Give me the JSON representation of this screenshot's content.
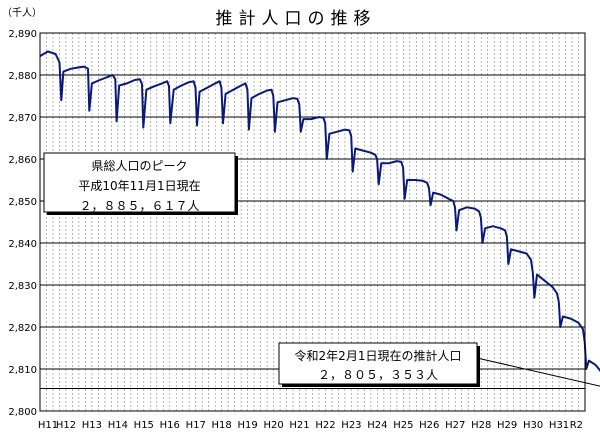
{
  "chart_data": {
    "type": "line",
    "title": "推計人口の推移",
    "unit_label": "（千人）",
    "ylim": [
      2800,
      2890
    ],
    "yticks": [
      "2,890",
      "2,880",
      "2,870",
      "2,860",
      "2,850",
      "2,840",
      "2,830",
      "2,820",
      "2,810",
      "2,800"
    ],
    "xlabels": [
      "H11",
      "H12",
      "H13",
      "H14",
      "H15",
      "H16",
      "H17",
      "H18",
      "H19",
      "H20",
      "H21",
      "H22",
      "H23",
      "H24",
      "H25",
      "H26",
      "H27",
      "H28",
      "H29",
      "H30",
      "H31",
      "R2"
    ],
    "grid": true,
    "line_color": "#0a1a7a",
    "reference_line_value": 2805.353,
    "annotations": [
      {
        "name": "peak",
        "lines": [
          "県総人口のピーク",
          "平成10年11月1日現在",
          "２，８８５，６１７人"
        ]
      },
      {
        "name": "current",
        "lines": [
          "令和2年2月1日現在の推計人口",
          "２，８０５，３５３人"
        ]
      }
    ],
    "series": [
      {
        "points": [
          [
            0.0,
            2884.5
          ],
          [
            0.3,
            2885.6
          ],
          [
            0.6,
            2885.0
          ],
          [
            0.75,
            2883.0
          ],
          [
            0.82,
            2874.0
          ],
          [
            0.9,
            2880.8
          ],
          [
            1.2,
            2881.5
          ],
          [
            1.5,
            2881.8
          ],
          [
            1.7,
            2882.0
          ],
          [
            1.85,
            2881.5
          ],
          [
            1.9,
            2871.5
          ],
          [
            2.0,
            2878.0
          ],
          [
            2.3,
            2878.8
          ],
          [
            2.6,
            2879.5
          ],
          [
            2.8,
            2880.0
          ],
          [
            2.9,
            2879.0
          ],
          [
            2.95,
            2869.0
          ],
          [
            3.05,
            2877.5
          ],
          [
            3.35,
            2878.0
          ],
          [
            3.65,
            2878.8
          ],
          [
            3.85,
            2879.0
          ],
          [
            3.93,
            2877.8
          ],
          [
            3.98,
            2867.5
          ],
          [
            4.1,
            2876.5
          ],
          [
            4.4,
            2877.3
          ],
          [
            4.7,
            2878.0
          ],
          [
            4.9,
            2878.5
          ],
          [
            4.97,
            2877.3
          ],
          [
            5.02,
            2868.5
          ],
          [
            5.15,
            2876.5
          ],
          [
            5.45,
            2877.5
          ],
          [
            5.75,
            2878.3
          ],
          [
            5.92,
            2878.5
          ],
          [
            5.99,
            2877.0
          ],
          [
            6.05,
            2868.0
          ],
          [
            6.15,
            2876.0
          ],
          [
            6.45,
            2877.0
          ],
          [
            6.75,
            2878.0
          ],
          [
            6.92,
            2878.5
          ],
          [
            6.99,
            2877.0
          ],
          [
            7.05,
            2868.5
          ],
          [
            7.15,
            2875.5
          ],
          [
            7.45,
            2876.5
          ],
          [
            7.75,
            2877.5
          ],
          [
            7.92,
            2878.0
          ],
          [
            7.99,
            2876.5
          ],
          [
            8.05,
            2867.0
          ],
          [
            8.15,
            2874.5
          ],
          [
            8.45,
            2875.5
          ],
          [
            8.75,
            2876.3
          ],
          [
            8.92,
            2876.5
          ],
          [
            8.99,
            2875.0
          ],
          [
            9.05,
            2866.5
          ],
          [
            9.15,
            2873.5
          ],
          [
            9.45,
            2874.0
          ],
          [
            9.75,
            2874.5
          ],
          [
            9.92,
            2874.3
          ],
          [
            9.99,
            2873.0
          ],
          [
            10.05,
            2866.5
          ],
          [
            10.15,
            2869.5
          ],
          [
            10.45,
            2869.5
          ],
          [
            10.75,
            2870.0
          ],
          [
            10.92,
            2869.8
          ],
          [
            10.99,
            2868.5
          ],
          [
            11.05,
            2860.0
          ],
          [
            11.15,
            2866.0
          ],
          [
            11.45,
            2866.5
          ],
          [
            11.75,
            2867.0
          ],
          [
            11.92,
            2866.8
          ],
          [
            11.99,
            2865.5
          ],
          [
            12.05,
            2857.0
          ],
          [
            12.15,
            2862.5
          ],
          [
            12.45,
            2862.0
          ],
          [
            12.75,
            2861.5
          ],
          [
            12.92,
            2861.0
          ],
          [
            12.99,
            2860.0
          ],
          [
            13.05,
            2854.0
          ],
          [
            13.15,
            2859.0
          ],
          [
            13.45,
            2859.0
          ],
          [
            13.75,
            2859.5
          ],
          [
            13.92,
            2859.3
          ],
          [
            13.99,
            2858.0
          ],
          [
            14.05,
            2850.5
          ],
          [
            14.15,
            2855.0
          ],
          [
            14.45,
            2855.0
          ],
          [
            14.75,
            2854.8
          ],
          [
            14.92,
            2854.3
          ],
          [
            14.99,
            2853.0
          ],
          [
            15.05,
            2849.0
          ],
          [
            15.15,
            2852.0
          ],
          [
            15.45,
            2851.5
          ],
          [
            15.75,
            2850.5
          ],
          [
            15.92,
            2850.0
          ],
          [
            15.99,
            2848.5
          ],
          [
            16.05,
            2843.0
          ],
          [
            16.15,
            2847.8
          ],
          [
            16.45,
            2848.5
          ],
          [
            16.75,
            2848.2
          ],
          [
            16.92,
            2847.5
          ],
          [
            16.99,
            2846.0
          ],
          [
            17.05,
            2840.0
          ],
          [
            17.15,
            2843.5
          ],
          [
            17.45,
            2844.0
          ],
          [
            17.75,
            2843.5
          ],
          [
            17.92,
            2843.0
          ],
          [
            17.99,
            2841.5
          ],
          [
            18.05,
            2835.0
          ],
          [
            18.15,
            2838.5
          ],
          [
            18.45,
            2838.0
          ],
          [
            18.75,
            2837.5
          ],
          [
            18.92,
            2836.0
          ],
          [
            18.99,
            2833.0
          ],
          [
            19.05,
            2827.0
          ],
          [
            19.15,
            2832.5
          ],
          [
            19.45,
            2831.0
          ],
          [
            19.75,
            2829.5
          ],
          [
            19.92,
            2828.0
          ],
          [
            19.99,
            2826.0
          ],
          [
            20.05,
            2820.0
          ],
          [
            20.15,
            2822.5
          ],
          [
            20.45,
            2822.0
          ],
          [
            20.75,
            2821.0
          ],
          [
            20.92,
            2819.5
          ],
          [
            20.99,
            2816.5
          ],
          [
            21.05,
            2810.0
          ],
          [
            21.15,
            2812.0
          ],
          [
            21.4,
            2811.0
          ],
          [
            21.6,
            2809.5
          ],
          [
            21.75,
            2808.5
          ],
          [
            21.85,
            2807.5
          ],
          [
            21.95,
            2805.4
          ]
        ]
      }
    ]
  }
}
